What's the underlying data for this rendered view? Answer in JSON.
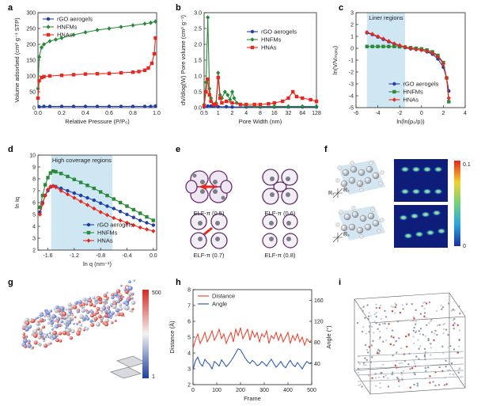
{
  "figure": {
    "panels": {
      "a": {
        "letter": "a"
      },
      "b": {
        "letter": "b"
      },
      "c": {
        "letter": "c"
      },
      "d": {
        "letter": "d"
      },
      "e": {
        "letter": "e"
      },
      "f": {
        "letter": "f"
      },
      "g": {
        "letter": "g"
      },
      "h": {
        "letter": "h"
      },
      "i": {
        "letter": "i"
      }
    },
    "e_captions": [
      "ELF-π (0.5)",
      "ELF-π (0.6)",
      "ELF-π (0.7)",
      "ELF-π (0.8)"
    ],
    "f_colorbar": {
      "max": "0.1",
      "min": "0"
    },
    "f_axes_labels": [
      "R₁",
      "R₂",
      "R₃"
    ],
    "g_colorbar": {
      "max": "500",
      "min": "1"
    },
    "colors": {
      "rgo": "#1f3fa8",
      "hnfm": "#2a8a3a",
      "hna": "#e8281e",
      "shade": "#cfe6f3",
      "dist": "#ee3a22",
      "angle": "#1f4fb0"
    }
  },
  "chart_data": [
    {
      "id": "a",
      "type": "line",
      "title": "",
      "xlabel": "Relative Pressure (P/P₀)",
      "ylabel": "Volume adsorbed (cm³ g⁻¹ STP)",
      "xlim": [
        0,
        1.0
      ],
      "ylim": [
        0,
        300
      ],
      "xticks": [
        0.0,
        0.2,
        0.4,
        0.6,
        0.8,
        1.0
      ],
      "xtick_labels": [
        "0.0",
        "0.2",
        "0.4",
        "0.6",
        "0.8",
        "1.0"
      ],
      "yticks": [
        0,
        50,
        100,
        150,
        200,
        250,
        300
      ],
      "ytick_labels": [
        "0",
        "50",
        "100",
        "150",
        "200",
        "250",
        "300"
      ],
      "legend": "top-left",
      "series": [
        {
          "name": "rGO aerogels",
          "color": "#1f3fa8",
          "marker": "circle",
          "x": [
            0.01,
            0.05,
            0.1,
            0.2,
            0.3,
            0.4,
            0.5,
            0.6,
            0.7,
            0.8,
            0.9,
            0.95,
            0.99
          ],
          "y": [
            3,
            4,
            4,
            4,
            4,
            4,
            4,
            4,
            4,
            4,
            4,
            4,
            5
          ]
        },
        {
          "name": "HNFMs",
          "color": "#2a8a3a",
          "marker": "diamond",
          "x": [
            0.0,
            0.01,
            0.03,
            0.05,
            0.1,
            0.15,
            0.2,
            0.3,
            0.4,
            0.5,
            0.6,
            0.7,
            0.8,
            0.9,
            0.95,
            0.99
          ],
          "y": [
            60,
            160,
            190,
            200,
            210,
            215,
            220,
            230,
            238,
            245,
            250,
            255,
            260,
            265,
            268,
            272
          ]
        },
        {
          "name": "HNAs",
          "color": "#e8281e",
          "marker": "square",
          "x": [
            0.0,
            0.01,
            0.03,
            0.05,
            0.1,
            0.2,
            0.3,
            0.4,
            0.5,
            0.6,
            0.7,
            0.8,
            0.85,
            0.9,
            0.93,
            0.96,
            0.98,
            0.99
          ],
          "y": [
            30,
            85,
            95,
            98,
            100,
            102,
            104,
            106,
            107,
            108,
            110,
            112,
            114,
            118,
            125,
            140,
            170,
            220
          ]
        }
      ]
    },
    {
      "id": "b",
      "type": "line",
      "title": "",
      "xlabel": "Pore Width (nm)",
      "ylabel": "dV/dlog(W) Pore volume (cm³ g⁻¹)",
      "xscale": "log2",
      "xlim": [
        0.5,
        128
      ],
      "ylim": [
        0,
        3.0
      ],
      "xticks": [
        0.5,
        1,
        2,
        4,
        8,
        16,
        32,
        64,
        128
      ],
      "xtick_labels": [
        "0.5",
        "1",
        "2",
        "4",
        "8",
        "16",
        "32",
        "64",
        "128"
      ],
      "yticks": [
        0.0,
        0.5,
        1.0,
        1.5,
        2.0,
        2.5,
        3.0
      ],
      "ytick_labels": [
        "0.0",
        "0.5",
        "1.0",
        "1.5",
        "2.0",
        "2.5",
        "3.0"
      ],
      "legend": "top-right",
      "series": [
        {
          "name": "rGO aerogels",
          "color": "#1f3fa8",
          "marker": "circle",
          "x": [
            0.5,
            0.6,
            0.7,
            0.8,
            1,
            1.5,
            2,
            4,
            8,
            16,
            32,
            64,
            128
          ],
          "y": [
            0.02,
            0.05,
            0.05,
            0.04,
            0.03,
            0.03,
            0.02,
            0.02,
            0.02,
            0.02,
            0.02,
            0.02,
            0.02
          ]
        },
        {
          "name": "HNFMs",
          "color": "#2a8a3a",
          "marker": "diamond",
          "x": [
            0.5,
            0.55,
            0.6,
            0.65,
            0.7,
            0.8,
            0.9,
            1.0,
            1.1,
            1.2,
            1.4,
            1.6,
            1.8,
            2.0,
            2.2,
            2.5,
            3,
            4,
            6,
            8,
            16,
            32,
            64,
            128
          ],
          "y": [
            0.1,
            0.8,
            2.85,
            0.6,
            0.3,
            0.1,
            0.15,
            1.1,
            0.4,
            0.3,
            0.5,
            0.4,
            0.25,
            0.5,
            0.3,
            0.15,
            0.1,
            0.05,
            0.05,
            0.04,
            0.04,
            0.04,
            0.04,
            0.04
          ]
        },
        {
          "name": "HNAs",
          "color": "#e8281e",
          "marker": "square",
          "x": [
            0.5,
            0.55,
            0.6,
            0.65,
            0.7,
            0.8,
            0.9,
            1.0,
            1.1,
            1.2,
            1.5,
            2,
            3,
            4,
            6,
            8,
            12,
            16,
            24,
            32,
            40,
            48,
            64,
            96,
            128
          ],
          "y": [
            0.05,
            0.5,
            0.9,
            0.4,
            0.2,
            0.1,
            0.1,
            0.95,
            0.3,
            0.15,
            0.2,
            0.15,
            0.1,
            0.1,
            0.1,
            0.1,
            0.12,
            0.15,
            0.2,
            0.3,
            0.5,
            0.35,
            0.3,
            0.25,
            0.2
          ]
        }
      ]
    },
    {
      "id": "c",
      "type": "line",
      "title": "",
      "xlabel": "ln(ln(p₀/p))",
      "ylabel": "ln(V/Vₘₒₙₒ)",
      "xlim": [
        -6,
        4
      ],
      "ylim": [
        -5,
        3
      ],
      "xticks": [
        -6,
        -4,
        -2,
        0,
        2,
        4
      ],
      "xtick_labels": [
        "-6",
        "-4",
        "-2",
        "0",
        "2",
        "4"
      ],
      "yticks": [
        -5,
        -4,
        -3,
        -2,
        -1,
        0,
        1,
        2,
        3
      ],
      "ytick_labels": [
        "-5",
        "-4",
        "-3",
        "-2",
        "-1",
        "0",
        "1",
        "2",
        "3"
      ],
      "shaded_region": {
        "x": [
          -5,
          -1.5
        ],
        "label": "Liner regions"
      },
      "legend": "bottom-center",
      "series": [
        {
          "name": "rGO aerogels",
          "color": "#1f3fa8",
          "marker": "circle",
          "x": [
            -5,
            -4.5,
            -4,
            -3.5,
            -3,
            -2.5,
            -2,
            -1.5,
            -1,
            -0.5,
            0,
            0.5,
            1,
            1.5,
            2,
            2.3,
            2.5
          ],
          "y": [
            1.3,
            1.15,
            0.95,
            0.75,
            0.55,
            0.35,
            0.2,
            0.05,
            -0.05,
            -0.1,
            -0.15,
            -0.3,
            -0.5,
            -0.9,
            -1.6,
            -2.5,
            -3.6
          ]
        },
        {
          "name": "HNFMs",
          "color": "#2a8a3a",
          "marker": "square",
          "x": [
            -5,
            -4.5,
            -4,
            -3.5,
            -3,
            -2.5,
            -2,
            -1.5,
            -1,
            -0.5,
            0,
            0.5,
            1,
            1.5,
            2,
            2.3,
            2.5
          ],
          "y": [
            0.15,
            0.15,
            0.15,
            0.15,
            0.15,
            0.15,
            0.13,
            0.1,
            0.05,
            0.0,
            -0.05,
            -0.15,
            -0.3,
            -0.6,
            -1.2,
            -2.5,
            -4.5
          ]
        },
        {
          "name": "HNAs",
          "color": "#e8281e",
          "marker": "diamond",
          "x": [
            -5,
            -4.5,
            -4,
            -3.5,
            -3,
            -2.5,
            -2,
            -1.5,
            -1,
            -0.5,
            0,
            0.5,
            1,
            1.5,
            2,
            2.3,
            2.5
          ],
          "y": [
            1.35,
            1.2,
            1.0,
            0.8,
            0.6,
            0.4,
            0.25,
            0.1,
            0.0,
            -0.1,
            -0.15,
            -0.25,
            -0.4,
            -0.7,
            -1.3,
            -2.5,
            -4.2
          ]
        }
      ]
    },
    {
      "id": "d",
      "type": "line",
      "title": "",
      "xlabel": "ln q (nm⁻¹)",
      "ylabel": "ln Iq",
      "xlim": [
        -1.75,
        0.05
      ],
      "ylim": [
        2.0,
        10.0
      ],
      "xticks": [
        -1.6,
        -1.2,
        -0.8,
        -0.4,
        0.0
      ],
      "xtick_labels": [
        "-1.6",
        "-1.2",
        "-0.8",
        "-0.4",
        "0.0"
      ],
      "yticks": [
        2,
        3,
        4,
        5,
        6,
        7,
        8,
        9,
        10
      ],
      "ytick_labels": [
        "2",
        "3",
        "4",
        "5",
        "6",
        "7",
        "8",
        "9",
        "10"
      ],
      "shaded_region": {
        "x": [
          -1.55,
          -0.62
        ],
        "label": "High coverage regions"
      },
      "legend": "bottom-left",
      "series": [
        {
          "name": "rGO aerogels",
          "color": "#1f3fa8",
          "marker": "circle",
          "x": [
            -1.72,
            -1.68,
            -1.64,
            -1.6,
            -1.56,
            -1.52,
            -1.48,
            -1.4,
            -1.3,
            -1.2,
            -1.1,
            -1.0,
            -0.9,
            -0.8,
            -0.7,
            -0.6,
            -0.5,
            -0.4,
            -0.3,
            -0.2,
            -0.1,
            0.0
          ],
          "y": [
            5.2,
            6.0,
            6.6,
            7.0,
            7.3,
            7.4,
            7.35,
            7.2,
            7.0,
            6.8,
            6.6,
            6.4,
            6.2,
            5.95,
            5.7,
            5.5,
            5.25,
            5.0,
            4.75,
            4.5,
            4.3,
            4.1
          ]
        },
        {
          "name": "HNFMs",
          "color": "#2a8a3a",
          "marker": "square",
          "x": [
            -1.72,
            -1.68,
            -1.64,
            -1.6,
            -1.56,
            -1.52,
            -1.48,
            -1.4,
            -1.3,
            -1.2,
            -1.1,
            -1.0,
            -0.9,
            -0.8,
            -0.7,
            -0.6,
            -0.5,
            -0.4,
            -0.3,
            -0.2,
            -0.1,
            0.0
          ],
          "y": [
            5.6,
            6.6,
            7.5,
            8.1,
            8.5,
            8.65,
            8.6,
            8.45,
            8.2,
            7.95,
            7.7,
            7.45,
            7.2,
            6.9,
            6.6,
            6.3,
            6.0,
            5.7,
            5.4,
            5.1,
            4.8,
            4.5
          ]
        },
        {
          "name": "HNAs",
          "color": "#e8281e",
          "marker": "diamond",
          "x": [
            -1.72,
            -1.68,
            -1.64,
            -1.6,
            -1.56,
            -1.52,
            -1.48,
            -1.4,
            -1.3,
            -1.2,
            -1.1,
            -1.0,
            -0.9,
            -0.8,
            -0.7,
            -0.6,
            -0.5,
            -0.4,
            -0.3,
            -0.2,
            -0.1,
            0.0
          ],
          "y": [
            5.0,
            5.9,
            6.6,
            7.1,
            7.35,
            7.4,
            7.3,
            7.0,
            6.7,
            6.4,
            6.1,
            5.8,
            5.5,
            5.2,
            4.95,
            4.7,
            4.5,
            4.3,
            4.1,
            3.9,
            3.75,
            3.6
          ]
        }
      ]
    },
    {
      "id": "h",
      "type": "line",
      "title": "",
      "xlabel": "Frame",
      "ylabel": "Distance (Å)",
      "ylabel_right": "Angle (°)",
      "xlim": [
        0,
        500
      ],
      "ylim": [
        2,
        8
      ],
      "ylim_right": [
        0,
        180
      ],
      "xticks": [
        0,
        100,
        200,
        300,
        400,
        500
      ],
      "xtick_labels": [
        "0",
        "100",
        "200",
        "300",
        "400",
        "500"
      ],
      "yticks": [
        2,
        3,
        4,
        5,
        6,
        7,
        8
      ],
      "ytick_labels": [
        "2",
        "3",
        "4",
        "5",
        "6",
        "7",
        "8"
      ],
      "yticks_right": [
        40,
        80,
        120,
        160
      ],
      "ytick_labels_right": [
        "40",
        "80",
        "120",
        "160"
      ],
      "legend": "top-left",
      "series": [
        {
          "name": "Distance",
          "color": "#ee3a22",
          "axis": "left",
          "x": [
            0,
            10,
            20,
            30,
            40,
            50,
            60,
            70,
            80,
            90,
            100,
            110,
            120,
            130,
            140,
            150,
            160,
            170,
            180,
            190,
            200,
            210,
            220,
            230,
            240,
            250,
            260,
            270,
            280,
            290,
            300,
            310,
            320,
            330,
            340,
            350,
            360,
            370,
            380,
            390,
            400,
            410,
            420,
            430,
            440,
            450,
            460,
            470,
            480,
            490,
            500
          ],
          "y": [
            4.3,
            4.8,
            5.2,
            4.6,
            4.9,
            5.3,
            4.7,
            5.0,
            5.4,
            4.8,
            5.1,
            5.5,
            4.9,
            5.2,
            4.6,
            5.0,
            5.3,
            4.7,
            5.5,
            5.1,
            5.6,
            4.9,
            5.2,
            5.5,
            4.8,
            5.4,
            5.0,
            5.3,
            4.7,
            5.2,
            5.0,
            5.4,
            4.6,
            5.1,
            4.9,
            5.3,
            4.8,
            5.2,
            4.7,
            5.0,
            5.3,
            4.6,
            5.1,
            4.8,
            5.2,
            4.7,
            5.0,
            4.5,
            4.9,
            4.7,
            4.8
          ]
        },
        {
          "name": "Angle",
          "color": "#1f4fb0",
          "axis": "right",
          "x": [
            0,
            10,
            20,
            30,
            40,
            50,
            60,
            70,
            80,
            90,
            100,
            110,
            120,
            130,
            140,
            150,
            160,
            170,
            180,
            190,
            200,
            210,
            220,
            230,
            240,
            250,
            260,
            270,
            280,
            290,
            300,
            310,
            320,
            330,
            340,
            350,
            360,
            370,
            380,
            390,
            400,
            410,
            420,
            430,
            440,
            450,
            460,
            470,
            480,
            490,
            500
          ],
          "y": [
            28,
            45,
            52,
            40,
            35,
            48,
            42,
            38,
            30,
            44,
            40,
            35,
            47,
            41,
            34,
            39,
            45,
            52,
            60,
            68,
            66,
            58,
            50,
            44,
            40,
            46,
            42,
            36,
            38,
            44,
            40,
            35,
            42,
            48,
            40,
            33,
            38,
            44,
            36,
            32,
            40,
            46,
            38,
            34,
            42,
            36,
            30,
            38,
            44,
            40,
            42
          ]
        }
      ]
    }
  ]
}
